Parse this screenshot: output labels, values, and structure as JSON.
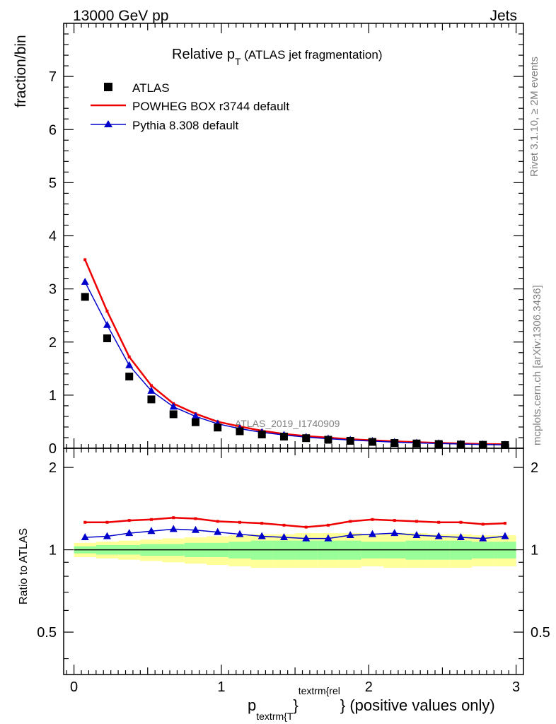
{
  "header": {
    "energy_label": "13000 GeV pp",
    "category_label": "Jets"
  },
  "side_labels": {
    "rivet": "Rivet 3.1.10, ≥ 2M events",
    "mcplots": "mcplots.cern.ch [arXiv:1306.3436]"
  },
  "chart_data": {
    "type": "line",
    "title": "Relative p",
    "title_sub": "T",
    "title_rest": " (ATLAS jet fragmentation)",
    "analysis_watermark": "ATLAS_2019_I1740909",
    "ylabel": "fraction/bin",
    "ratio_ylabel": "Ratio to ATLAS",
    "xlabel": {
      "p": "p",
      "sub": "textrm{T",
      "sup": "textrm{rel",
      "brace": "}",
      "close": "}",
      "rest": " (positive values only)"
    },
    "xlim": [
      -0.07,
      3.05
    ],
    "ylim": [
      0,
      8.0
    ],
    "ratio_ylim": [
      0.35,
      2.35
    ],
    "x_ticks": [
      "0",
      "1",
      "2",
      "3"
    ],
    "y_ticks": [
      "0",
      "1",
      "2",
      "3",
      "4",
      "5",
      "6",
      "7"
    ],
    "ratio_y_ticks": [
      "0.5",
      "1",
      "2"
    ],
    "legend": {
      "data": "ATLAS",
      "powheg": "POWHEG BOX r3744 default",
      "pythia": "Pythia 8.308 default"
    },
    "colors": {
      "data": "#000000",
      "powheg": "#ee0000",
      "pythia": "#0000cc",
      "band_inner": "#99ff99",
      "band_outer": "#ffff99"
    },
    "x": [
      0.075,
      0.225,
      0.375,
      0.525,
      0.675,
      0.825,
      0.975,
      1.125,
      1.275,
      1.425,
      1.575,
      1.725,
      1.875,
      2.025,
      2.175,
      2.325,
      2.475,
      2.625,
      2.775,
      2.925
    ],
    "bin_edges": [
      0.0,
      0.15,
      0.3,
      0.45,
      0.6,
      0.75,
      0.9,
      1.05,
      1.2,
      1.35,
      1.5,
      1.65,
      1.8,
      1.95,
      2.1,
      2.25,
      2.4,
      2.55,
      2.7,
      2.85,
      3.0
    ],
    "series": [
      {
        "name": "ATLAS",
        "values": [
          2.85,
          2.07,
          1.35,
          0.92,
          0.64,
          0.49,
          0.39,
          0.32,
          0.26,
          0.22,
          0.19,
          0.16,
          0.14,
          0.12,
          0.1,
          0.09,
          0.08,
          0.07,
          0.065,
          0.06
        ]
      },
      {
        "name": "POWHEG BOX r3744 default",
        "values": [
          3.55,
          2.58,
          1.72,
          1.18,
          0.84,
          0.65,
          0.5,
          0.41,
          0.33,
          0.27,
          0.23,
          0.2,
          0.17,
          0.15,
          0.13,
          0.115,
          0.1,
          0.09,
          0.08,
          0.075
        ]
      },
      {
        "name": "Pythia 8.308 default",
        "values": [
          3.13,
          2.32,
          1.56,
          1.08,
          0.78,
          0.6,
          0.46,
          0.37,
          0.3,
          0.25,
          0.21,
          0.18,
          0.155,
          0.135,
          0.115,
          0.1,
          0.09,
          0.08,
          0.07,
          0.065
        ]
      }
    ],
    "ratio_series": [
      {
        "name": "POWHEG BOX r3744 default",
        "values": [
          1.26,
          1.26,
          1.28,
          1.29,
          1.31,
          1.3,
          1.27,
          1.26,
          1.25,
          1.23,
          1.21,
          1.23,
          1.27,
          1.29,
          1.28,
          1.27,
          1.26,
          1.26,
          1.24,
          1.25
        ]
      },
      {
        "name": "Pythia 8.308 default",
        "values": [
          1.11,
          1.12,
          1.15,
          1.17,
          1.19,
          1.18,
          1.16,
          1.14,
          1.12,
          1.11,
          1.1,
          1.1,
          1.13,
          1.14,
          1.15,
          1.13,
          1.12,
          1.11,
          1.1,
          1.12
        ]
      }
    ],
    "ratio_band_inner": {
      "low": [
        0.97,
        0.96,
        0.96,
        0.95,
        0.95,
        0.94,
        0.94,
        0.93,
        0.92,
        0.92,
        0.92,
        0.92,
        0.92,
        0.93,
        0.93,
        0.92,
        0.92,
        0.92,
        0.93,
        0.93
      ],
      "high": [
        1.03,
        1.04,
        1.04,
        1.05,
        1.05,
        1.06,
        1.06,
        1.07,
        1.08,
        1.08,
        1.08,
        1.08,
        1.08,
        1.07,
        1.07,
        1.08,
        1.08,
        1.08,
        1.07,
        1.07
      ]
    },
    "ratio_band_outer": {
      "low": [
        0.94,
        0.93,
        0.92,
        0.91,
        0.9,
        0.89,
        0.88,
        0.87,
        0.86,
        0.86,
        0.86,
        0.86,
        0.86,
        0.87,
        0.86,
        0.86,
        0.86,
        0.86,
        0.87,
        0.87
      ],
      "high": [
        1.06,
        1.07,
        1.08,
        1.09,
        1.1,
        1.11,
        1.12,
        1.13,
        1.14,
        1.14,
        1.15,
        1.15,
        1.15,
        1.14,
        1.15,
        1.15,
        1.14,
        1.14,
        1.13,
        1.13
      ]
    },
    "grid": false,
    "legend_position": "top-left"
  }
}
